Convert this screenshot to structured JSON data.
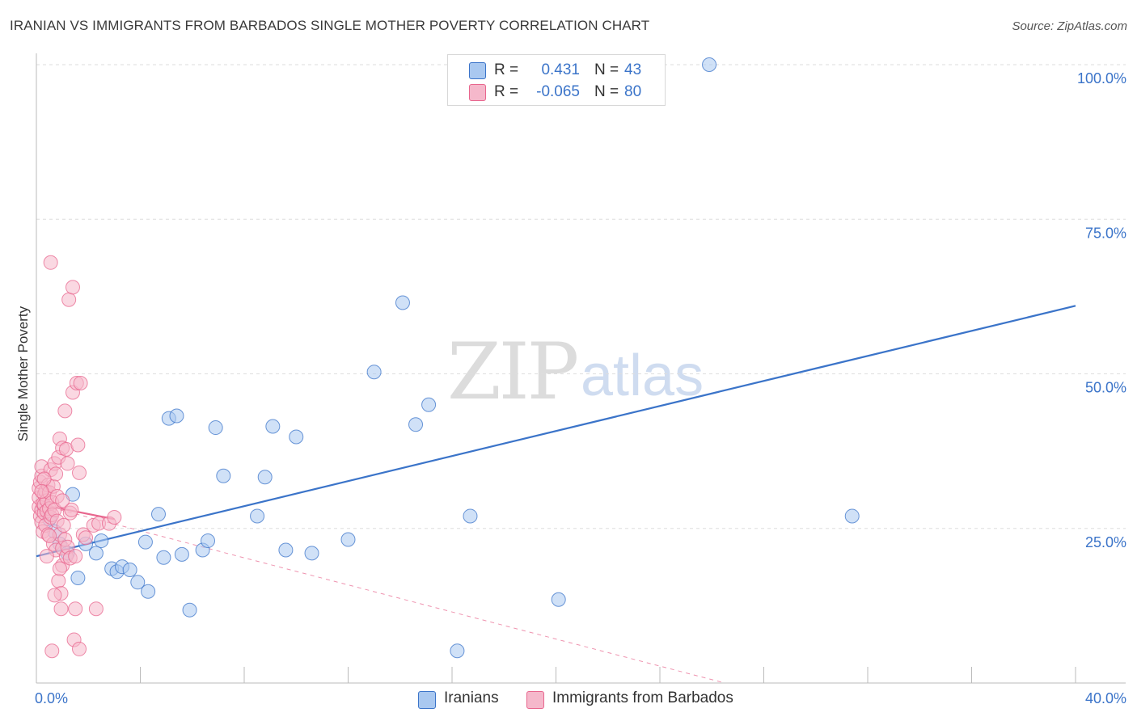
{
  "title": "IRANIAN VS IMMIGRANTS FROM BARBADOS SINGLE MOTHER POVERTY CORRELATION CHART",
  "source": "Source: ZipAtlas.com",
  "watermark": {
    "zip": "ZIP",
    "atlas": "atlas"
  },
  "legend_top": {
    "rows": [
      {
        "r_label": "R =",
        "r_value": "0.431",
        "n_label": "N =",
        "n_value": "43",
        "color": "#a9c8f0"
      },
      {
        "r_label": "R =",
        "r_value": "-0.065",
        "n_label": "N =",
        "n_value": "80",
        "color": "#f5b8cb"
      }
    ]
  },
  "legend_bottom": [
    {
      "label": "Iranians",
      "color": "#a9c8f0"
    },
    {
      "label": "Immigrants from Barbados",
      "color": "#f5b8cb"
    }
  ],
  "chart_data": {
    "type": "scatter",
    "title": "IRANIAN VS IMMIGRANTS FROM BARBADOS SINGLE MOTHER POVERTY CORRELATION CHART",
    "xlabel": "",
    "ylabel": "Single Mother Poverty",
    "xlim": [
      0,
      40
    ],
    "ylim": [
      0,
      100
    ],
    "x_tick_labels": [
      "0.0%",
      "40.0%"
    ],
    "y_ticks": [
      25,
      50,
      75,
      100
    ],
    "y_tick_labels": [
      "25.0%",
      "50.0%",
      "75.0%",
      "100.0%"
    ],
    "grid": true,
    "legend_position": "top-center",
    "series": [
      {
        "name": "Iranians",
        "color": "#3b74c9",
        "fill": "#a9c8f0",
        "r": 0.431,
        "n": 43,
        "trend": {
          "x": [
            0,
            40
          ],
          "y": [
            20.5,
            61.0
          ],
          "style": "solid"
        },
        "points": [
          [
            0.5,
            26.5
          ],
          [
            0.7,
            24.5
          ],
          [
            0.9,
            22.5
          ],
          [
            1.2,
            21.0
          ],
          [
            1.4,
            30.5
          ],
          [
            1.6,
            17.0
          ],
          [
            1.9,
            22.5
          ],
          [
            2.3,
            21.0
          ],
          [
            2.5,
            23.0
          ],
          [
            2.9,
            18.5
          ],
          [
            3.1,
            18.0
          ],
          [
            3.3,
            18.8
          ],
          [
            3.6,
            18.3
          ],
          [
            3.9,
            16.3
          ],
          [
            4.2,
            22.8
          ],
          [
            4.3,
            14.8
          ],
          [
            4.7,
            27.3
          ],
          [
            4.9,
            20.3
          ],
          [
            5.1,
            42.8
          ],
          [
            5.4,
            43.2
          ],
          [
            5.6,
            20.8
          ],
          [
            5.9,
            11.8
          ],
          [
            6.4,
            21.5
          ],
          [
            6.6,
            23.0
          ],
          [
            6.9,
            41.3
          ],
          [
            7.2,
            33.5
          ],
          [
            8.5,
            27.0
          ],
          [
            8.8,
            33.3
          ],
          [
            9.1,
            41.5
          ],
          [
            9.6,
            21.5
          ],
          [
            10.0,
            39.8
          ],
          [
            10.6,
            21.0
          ],
          [
            12.0,
            23.2
          ],
          [
            13.0,
            50.3
          ],
          [
            14.1,
            61.5
          ],
          [
            14.6,
            41.8
          ],
          [
            15.1,
            45.0
          ],
          [
            16.2,
            5.2
          ],
          [
            16.7,
            27.0
          ],
          [
            20.1,
            13.5
          ],
          [
            25.9,
            100.0
          ],
          [
            31.4,
            27.0
          ],
          [
            0.3,
            28.5
          ]
        ]
      },
      {
        "name": "Immigrants from Barbados",
        "color": "#e8668e",
        "fill": "#f5b8cb",
        "r": -0.065,
        "n": 80,
        "trend": {
          "x": [
            0,
            3.0
          ],
          "y": [
            29.0,
            26.5
          ],
          "style": "solid"
        },
        "trend_extended": {
          "x": [
            0,
            26.5
          ],
          "y": [
            29.0,
            0.0
          ],
          "style": "dashed"
        },
        "points": [
          [
            0.1,
            28.5
          ],
          [
            0.1,
            30.0
          ],
          [
            0.1,
            31.5
          ],
          [
            0.15,
            27.0
          ],
          [
            0.15,
            32.5
          ],
          [
            0.2,
            26.0
          ],
          [
            0.2,
            28.0
          ],
          [
            0.2,
            33.5
          ],
          [
            0.2,
            35.0
          ],
          [
            0.25,
            29.0
          ],
          [
            0.25,
            24.5
          ],
          [
            0.3,
            27.5
          ],
          [
            0.3,
            30.5
          ],
          [
            0.3,
            28.8
          ],
          [
            0.35,
            31.0
          ],
          [
            0.35,
            25.5
          ],
          [
            0.4,
            29.5
          ],
          [
            0.4,
            27.8
          ],
          [
            0.45,
            32.0
          ],
          [
            0.45,
            24.0
          ],
          [
            0.5,
            28.2
          ],
          [
            0.5,
            30.8
          ],
          [
            0.55,
            26.8
          ],
          [
            0.55,
            34.5
          ],
          [
            0.6,
            29.2
          ],
          [
            0.6,
            27.2
          ],
          [
            0.65,
            31.8
          ],
          [
            0.65,
            22.5
          ],
          [
            0.7,
            35.5
          ],
          [
            0.7,
            28.0
          ],
          [
            0.75,
            33.8
          ],
          [
            0.75,
            21.5
          ],
          [
            0.8,
            30.2
          ],
          [
            0.8,
            26.2
          ],
          [
            0.85,
            36.5
          ],
          [
            0.85,
            16.5
          ],
          [
            0.9,
            39.5
          ],
          [
            0.9,
            24.0
          ],
          [
            0.95,
            12.0
          ],
          [
            0.95,
            14.5
          ],
          [
            1.0,
            38.0
          ],
          [
            1.0,
            19.0
          ],
          [
            1.0,
            21.8
          ],
          [
            1.05,
            25.5
          ],
          [
            1.1,
            44.0
          ],
          [
            1.1,
            23.2
          ],
          [
            1.15,
            37.8
          ],
          [
            1.15,
            20.5
          ],
          [
            1.2,
            35.5
          ],
          [
            1.2,
            22.0
          ],
          [
            1.25,
            62.0
          ],
          [
            1.3,
            27.5
          ],
          [
            1.3,
            20.2
          ],
          [
            1.35,
            28.0
          ],
          [
            1.4,
            64.0
          ],
          [
            1.4,
            47.0
          ],
          [
            1.45,
            7.0
          ],
          [
            1.5,
            12.0
          ],
          [
            1.5,
            20.5
          ],
          [
            1.55,
            48.5
          ],
          [
            1.6,
            38.5
          ],
          [
            1.65,
            5.5
          ],
          [
            1.65,
            34.0
          ],
          [
            1.7,
            48.5
          ],
          [
            1.8,
            24.0
          ],
          [
            1.9,
            23.5
          ],
          [
            2.2,
            25.5
          ],
          [
            2.3,
            12.0
          ],
          [
            2.4,
            25.8
          ],
          [
            2.8,
            25.8
          ],
          [
            3.0,
            26.8
          ],
          [
            0.55,
            68.0
          ],
          [
            0.6,
            5.2
          ],
          [
            0.5,
            23.8
          ],
          [
            0.4,
            20.5
          ],
          [
            0.3,
            33.0
          ],
          [
            0.2,
            31.0
          ],
          [
            0.7,
            14.2
          ],
          [
            0.9,
            18.5
          ],
          [
            1.0,
            29.5
          ]
        ]
      }
    ]
  }
}
